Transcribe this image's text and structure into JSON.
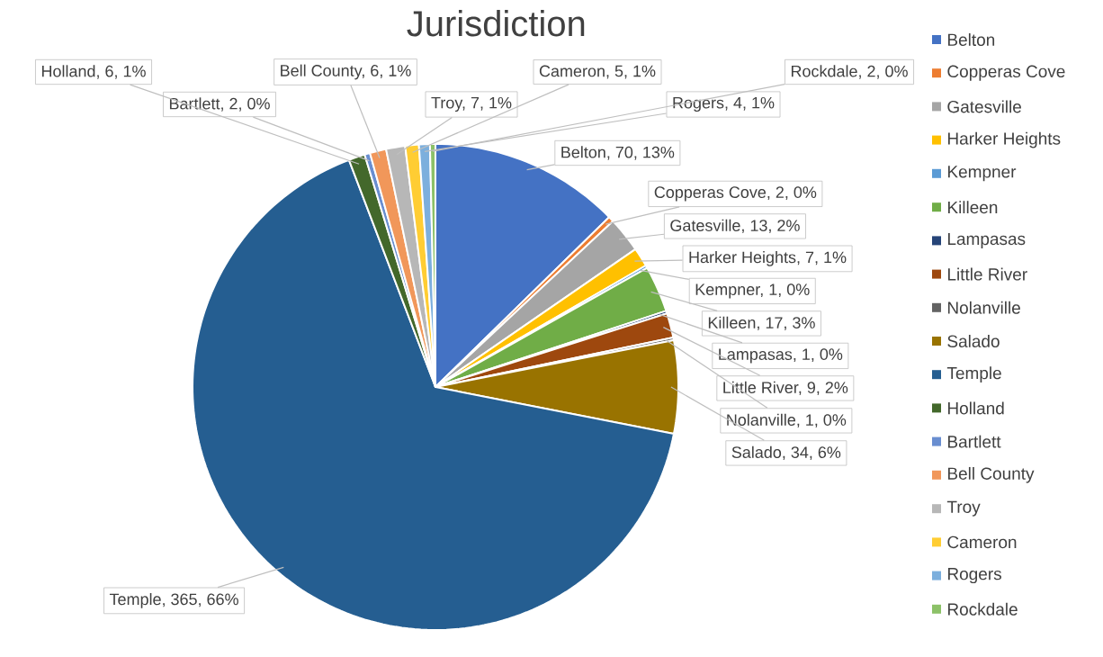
{
  "chart_data": {
    "type": "pie",
    "title": "Jurisdiction",
    "categories": [
      "Belton",
      "Copperas Cove",
      "Gatesville",
      "Harker Heights",
      "Kempner",
      "Killeen",
      "Lampasas",
      "Little River",
      "Nolanville",
      "Salado",
      "Temple",
      "Holland",
      "Bartlett",
      "Bell County",
      "Troy",
      "Cameron",
      "Rogers",
      "Rockdale"
    ],
    "values": [
      70,
      2,
      13,
      7,
      1,
      17,
      1,
      9,
      1,
      34,
      365,
      6,
      2,
      6,
      7,
      5,
      4,
      2
    ],
    "colors": [
      "#4472c4",
      "#ed7d31",
      "#a5a5a5",
      "#ffc000",
      "#5b9bd5",
      "#70ad47",
      "#264478",
      "#9e480e",
      "#636363",
      "#997300",
      "#255e91",
      "#43682b",
      "#698ed0",
      "#f1975a",
      "#b7b7b7",
      "#ffcd33",
      "#7cafdd",
      "#8cc168"
    ],
    "value_labels": [
      "Belton, 70, 13%",
      "Copperas Cove, 2, 0%",
      "Gatesville, 13, 2%",
      "Harker Heights, 7, 1%",
      "Kempner, 1, 0%",
      "Killeen, 17, 3%",
      "Lampasas, 1, 0%",
      "Little River, 9, 2%",
      "Nolanville, 1, 0%",
      "Salado, 34, 6%",
      "Temple, 365, 66%",
      "Holland, 6, 1%",
      "Bartlett, 2, 0%",
      "Bell County, 6, 1%",
      "Troy, 7, 1%",
      "Cameron, 5, 1%",
      "Rogers, 4, 1%",
      "Rockdale, 2, 0%"
    ],
    "legend": "right"
  }
}
